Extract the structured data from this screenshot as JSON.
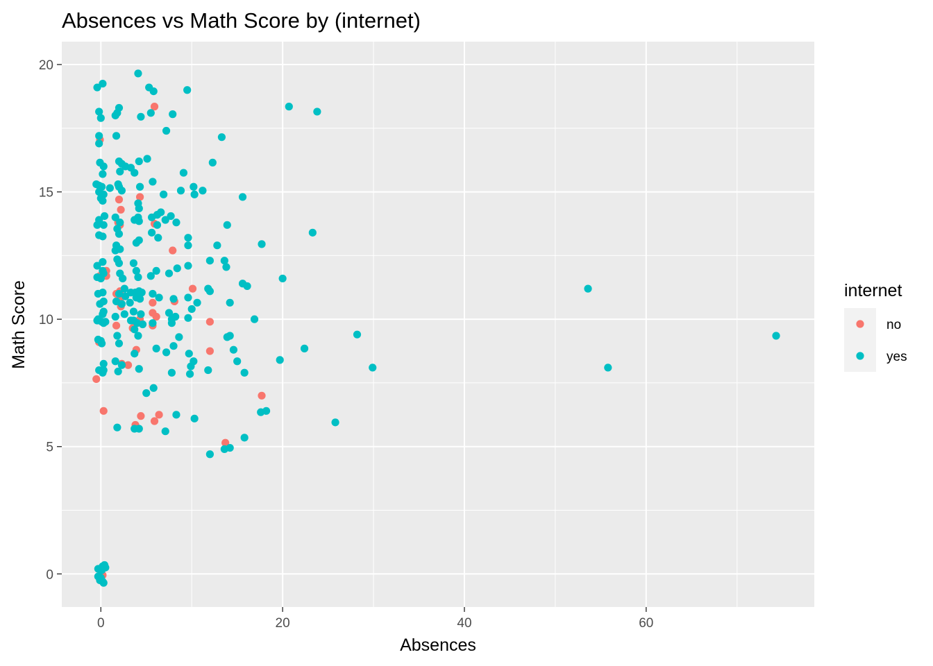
{
  "chart_data": {
    "type": "scatter",
    "title": "Absences vs Math Score by (internet)",
    "xlabel": "Absences",
    "ylabel": "Math Score",
    "xlim": [
      -4.3,
      78.5
    ],
    "ylim": [
      -1.3,
      20.9
    ],
    "x_ticks": [
      0,
      20,
      40,
      60
    ],
    "x_tick_labels": [
      "0",
      "20",
      "40",
      "60"
    ],
    "y_ticks": [
      0,
      5,
      10,
      15,
      20
    ],
    "y_tick_labels": [
      "0",
      "5",
      "10",
      "15",
      "20"
    ],
    "grid": true,
    "legend": {
      "title": "internet",
      "placement": "right"
    },
    "series": [
      {
        "name": "no",
        "color": "#F8766D",
        "points": [
          [
            -0.1,
            17.05
          ],
          [
            -0.5,
            7.65
          ],
          [
            -0.2,
            9.1
          ],
          [
            -0.1,
            11.7
          ],
          [
            0.6,
            11.7
          ],
          [
            0.6,
            11.9
          ],
          [
            0.3,
            6.4
          ],
          [
            0.1,
            0.0
          ],
          [
            0.2,
            -0.05
          ],
          [
            2.0,
            14.7
          ],
          [
            2.2,
            14.3
          ],
          [
            1.9,
            13.8
          ],
          [
            2.1,
            13.7
          ],
          [
            1.7,
            11.0
          ],
          [
            2.2,
            10.5
          ],
          [
            1.7,
            9.75
          ],
          [
            2.3,
            8.25
          ],
          [
            2.1,
            11.1
          ],
          [
            2.3,
            10.9
          ],
          [
            2.2,
            10.85
          ],
          [
            3.0,
            8.2
          ],
          [
            3.5,
            9.65
          ],
          [
            4.3,
            14.8
          ],
          [
            3.9,
            8.8
          ],
          [
            3.8,
            5.85
          ],
          [
            4.4,
            6.2
          ],
          [
            4.3,
            10.0
          ],
          [
            5.9,
            18.35
          ],
          [
            5.9,
            13.75
          ],
          [
            5.7,
            10.65
          ],
          [
            5.7,
            10.25
          ],
          [
            5.7,
            9.75
          ],
          [
            5.9,
            6.0
          ],
          [
            6.1,
            10.1
          ],
          [
            6.4,
            6.25
          ],
          [
            7.9,
            12.7
          ],
          [
            8.1,
            10.7
          ],
          [
            10.1,
            11.2
          ],
          [
            12.0,
            9.9
          ],
          [
            12.0,
            8.75
          ],
          [
            13.7,
            5.15
          ],
          [
            17.7,
            7.0
          ]
        ]
      },
      {
        "name": "yes",
        "color": "#00BFC4",
        "points": [
          [
            -0.4,
            19.1
          ],
          [
            0.2,
            19.25
          ],
          [
            -0.2,
            18.15
          ],
          [
            0.0,
            17.9
          ],
          [
            -0.2,
            17.2
          ],
          [
            -0.2,
            16.9
          ],
          [
            -0.1,
            16.15
          ],
          [
            0.3,
            16.0
          ],
          [
            0.2,
            15.7
          ],
          [
            -0.5,
            15.3
          ],
          [
            -0.2,
            15.25
          ],
          [
            0.1,
            15.2
          ],
          [
            -0.2,
            15.0
          ],
          [
            0.3,
            14.9
          ],
          [
            0.0,
            14.75
          ],
          [
            0.2,
            14.65
          ],
          [
            0.4,
            14.05
          ],
          [
            -0.2,
            13.9
          ],
          [
            -0.4,
            13.7
          ],
          [
            0.3,
            13.7
          ],
          [
            -0.2,
            13.3
          ],
          [
            0.2,
            13.25
          ],
          [
            -0.4,
            12.1
          ],
          [
            0.2,
            12.25
          ],
          [
            0.2,
            11.9
          ],
          [
            0.3,
            11.8
          ],
          [
            -0.4,
            11.65
          ],
          [
            0.0,
            11.6
          ],
          [
            -0.3,
            11.0
          ],
          [
            0.2,
            11.05
          ],
          [
            0.3,
            10.7
          ],
          [
            -0.1,
            10.6
          ],
          [
            0.3,
            10.3
          ],
          [
            0.2,
            10.2
          ],
          [
            -0.3,
            10.0
          ],
          [
            -0.4,
            9.95
          ],
          [
            0.1,
            9.9
          ],
          [
            0.3,
            9.85
          ],
          [
            0.5,
            9.9
          ],
          [
            -0.3,
            9.2
          ],
          [
            0.0,
            9.15
          ],
          [
            0.1,
            9.05
          ],
          [
            -0.2,
            8.0
          ],
          [
            0.3,
            8.25
          ],
          [
            0.3,
            8.0
          ],
          [
            0.2,
            7.9
          ],
          [
            -0.3,
            0.2
          ],
          [
            0.1,
            0.15
          ],
          [
            0.2,
            0.3
          ],
          [
            0.4,
            0.35
          ],
          [
            0.5,
            0.25
          ],
          [
            -0.3,
            -0.1
          ],
          [
            0.0,
            -0.15
          ],
          [
            -0.1,
            -0.25
          ],
          [
            0.2,
            -0.3
          ],
          [
            0.3,
            -0.35
          ],
          [
            1.6,
            18.0
          ],
          [
            1.8,
            18.1
          ],
          [
            2.0,
            18.3
          ],
          [
            1.7,
            17.2
          ],
          [
            2.0,
            16.2
          ],
          [
            2.3,
            16.1
          ],
          [
            2.7,
            16.0
          ],
          [
            3.3,
            15.95
          ],
          [
            2.1,
            15.8
          ],
          [
            1.9,
            15.3
          ],
          [
            2.0,
            15.2
          ],
          [
            2.3,
            15.05
          ],
          [
            1.0,
            15.15
          ],
          [
            1.6,
            14.0
          ],
          [
            2.1,
            13.8
          ],
          [
            1.8,
            13.55
          ],
          [
            2.0,
            13.35
          ],
          [
            1.7,
            12.9
          ],
          [
            2.1,
            12.75
          ],
          [
            1.6,
            12.7
          ],
          [
            1.8,
            12.35
          ],
          [
            2.0,
            12.2
          ],
          [
            2.1,
            11.8
          ],
          [
            2.4,
            11.6
          ],
          [
            2.6,
            11.2
          ],
          [
            3.3,
            11.05
          ],
          [
            2.0,
            11.0
          ],
          [
            1.7,
            10.7
          ],
          [
            2.3,
            10.6
          ],
          [
            2.7,
            10.9
          ],
          [
            3.2,
            10.65
          ],
          [
            1.6,
            10.1
          ],
          [
            2.6,
            10.2
          ],
          [
            3.3,
            9.95
          ],
          [
            1.8,
            9.35
          ],
          [
            2.0,
            9.05
          ],
          [
            1.6,
            8.35
          ],
          [
            2.3,
            8.2
          ],
          [
            1.9,
            7.95
          ],
          [
            1.8,
            5.75
          ],
          [
            4.1,
            19.65
          ],
          [
            5.3,
            19.1
          ],
          [
            5.8,
            18.95
          ],
          [
            5.5,
            18.1
          ],
          [
            4.4,
            17.95
          ],
          [
            4.2,
            16.2
          ],
          [
            5.1,
            16.3
          ],
          [
            3.7,
            15.75
          ],
          [
            4.3,
            15.2
          ],
          [
            5.7,
            15.4
          ],
          [
            4.1,
            14.55
          ],
          [
            4.2,
            14.35
          ],
          [
            4.1,
            14.0
          ],
          [
            4.2,
            13.85
          ],
          [
            3.7,
            13.9
          ],
          [
            5.6,
            14.0
          ],
          [
            6.2,
            14.1
          ],
          [
            6.6,
            14.2
          ],
          [
            7.7,
            14.05
          ],
          [
            7.1,
            13.9
          ],
          [
            6.2,
            13.7
          ],
          [
            5.6,
            13.4
          ],
          [
            6.3,
            13.2
          ],
          [
            4.2,
            13.1
          ],
          [
            3.9,
            13.0
          ],
          [
            3.6,
            12.2
          ],
          [
            3.9,
            11.9
          ],
          [
            4.1,
            11.65
          ],
          [
            5.5,
            11.7
          ],
          [
            6.1,
            11.9
          ],
          [
            3.8,
            11.05
          ],
          [
            4.2,
            11.1
          ],
          [
            4.5,
            11.05
          ],
          [
            3.9,
            10.85
          ],
          [
            4.3,
            10.8
          ],
          [
            5.7,
            11.0
          ],
          [
            6.4,
            10.85
          ],
          [
            3.6,
            10.3
          ],
          [
            4.4,
            10.2
          ],
          [
            3.6,
            9.95
          ],
          [
            4.0,
            9.85
          ],
          [
            4.6,
            9.8
          ],
          [
            5.7,
            9.85
          ],
          [
            3.7,
            9.6
          ],
          [
            4.1,
            9.35
          ],
          [
            3.7,
            8.65
          ],
          [
            4.2,
            8.05
          ],
          [
            6.1,
            8.85
          ],
          [
            5.0,
            7.1
          ],
          [
            5.8,
            7.3
          ],
          [
            3.7,
            5.7
          ],
          [
            4.2,
            5.7
          ],
          [
            7.1,
            5.6
          ],
          [
            7.2,
            17.4
          ],
          [
            7.9,
            18.05
          ],
          [
            6.9,
            14.9
          ],
          [
            8.3,
            13.8
          ],
          [
            7.5,
            11.8
          ],
          [
            8.4,
            12.0
          ],
          [
            8.0,
            10.8
          ],
          [
            7.5,
            10.25
          ],
          [
            7.8,
            10.0
          ],
          [
            8.2,
            10.1
          ],
          [
            7.8,
            9.85
          ],
          [
            7.2,
            8.7
          ],
          [
            8.0,
            8.95
          ],
          [
            8.6,
            9.3
          ],
          [
            7.8,
            7.9
          ],
          [
            8.3,
            6.25
          ],
          [
            9.5,
            19.0
          ],
          [
            9.1,
            15.75
          ],
          [
            8.8,
            15.05
          ],
          [
            10.2,
            15.2
          ],
          [
            10.3,
            14.9
          ],
          [
            9.6,
            13.2
          ],
          [
            9.6,
            12.9
          ],
          [
            9.6,
            12.1
          ],
          [
            9.6,
            10.85
          ],
          [
            10.6,
            10.65
          ],
          [
            10.0,
            10.4
          ],
          [
            9.6,
            10.05
          ],
          [
            9.7,
            8.65
          ],
          [
            9.9,
            8.15
          ],
          [
            10.2,
            8.35
          ],
          [
            9.8,
            7.85
          ],
          [
            10.3,
            6.1
          ],
          [
            11.2,
            15.05
          ],
          [
            12.3,
            16.15
          ],
          [
            12.0,
            12.3
          ],
          [
            11.8,
            11.2
          ],
          [
            12.0,
            11.1
          ],
          [
            11.8,
            8.0
          ],
          [
            12.0,
            4.7
          ],
          [
            13.3,
            17.15
          ],
          [
            12.8,
            12.9
          ],
          [
            13.6,
            12.3
          ],
          [
            13.8,
            12.05
          ],
          [
            13.9,
            13.7
          ],
          [
            14.2,
            10.65
          ],
          [
            13.9,
            9.3
          ],
          [
            14.2,
            9.35
          ],
          [
            14.6,
            8.8
          ],
          [
            15.0,
            8.35
          ],
          [
            13.6,
            4.9
          ],
          [
            14.2,
            4.95
          ],
          [
            15.6,
            14.8
          ],
          [
            15.6,
            11.4
          ],
          [
            16.1,
            11.3
          ],
          [
            15.8,
            7.9
          ],
          [
            15.8,
            5.35
          ],
          [
            16.9,
            10.0
          ],
          [
            17.7,
            12.95
          ],
          [
            17.6,
            6.35
          ],
          [
            18.2,
            6.4
          ],
          [
            19.7,
            8.4
          ],
          [
            20.0,
            11.6
          ],
          [
            20.7,
            18.35
          ],
          [
            23.8,
            18.15
          ],
          [
            23.3,
            13.4
          ],
          [
            22.4,
            8.85
          ],
          [
            25.8,
            5.95
          ],
          [
            28.2,
            9.4
          ],
          [
            29.9,
            8.1
          ],
          [
            53.6,
            11.2
          ],
          [
            55.8,
            8.1
          ],
          [
            74.3,
            9.35
          ]
        ]
      }
    ]
  }
}
